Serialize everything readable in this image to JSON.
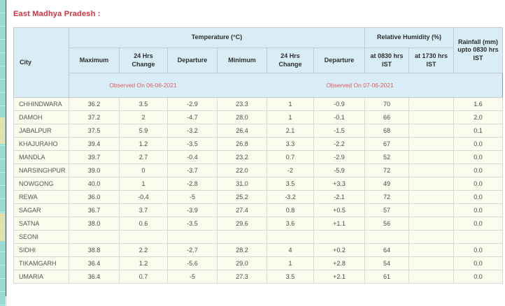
{
  "page": {
    "title": "East Madhya Pradesh :"
  },
  "colors": {
    "title_red": "#cf3340",
    "observed_red": "#e05c5c",
    "header_bg": "#d9edf6",
    "row_bg": "#fbfbee",
    "cell_border": "#d7d7d7",
    "header_border": "#c3c9cc",
    "outer_border": "#8f9aa0",
    "strip_teal": "#9adbd1",
    "strip_patch": "#e0e0b0",
    "text_dark": "#2e2e2e",
    "text_data": "#4a4a4a"
  },
  "table": {
    "header": {
      "city": "City",
      "temperature_group": "Temperature (°C)",
      "humidity_group": "Relative Humidity (%)",
      "rainfall": "Rainfall (mm) upto 0830 hrs IST",
      "sub": [
        "Maximum",
        "24 Hrs Change",
        "Departure",
        "Minimum",
        "24 Hrs Change",
        "Departure",
        "at 0830 hrs IST",
        "at 1730 hrs IST"
      ],
      "observed_max": "Observed On 06-06-2021",
      "observed_min": "Observed On 07-06-2021"
    },
    "rows": [
      {
        "city": "CHHINDWARA",
        "max": "36.2",
        "max_change": "3.5",
        "max_dep": "-2.9",
        "min": "23.3",
        "min_change": "1",
        "min_dep": "-0.9",
        "rh0830": "70",
        "rh1730": "",
        "rain": "1.6"
      },
      {
        "city": "DAMOH",
        "max": "37.2",
        "max_change": "2",
        "max_dep": "-4.7",
        "min": "28.0",
        "min_change": "1",
        "min_dep": "-0.1",
        "rh0830": "66",
        "rh1730": "",
        "rain": "2.0"
      },
      {
        "city": "JABALPUR",
        "max": "37.5",
        "max_change": "5.9",
        "max_dep": "-3.2",
        "min": "26.4",
        "min_change": "2.1",
        "min_dep": "-1.5",
        "rh0830": "68",
        "rh1730": "",
        "rain": "0.1"
      },
      {
        "city": "KHAJURAHO",
        "max": "39.4",
        "max_change": "1.2",
        "max_dep": "-3.5",
        "min": "26.8",
        "min_change": "3.3",
        "min_dep": "-2.2",
        "rh0830": "67",
        "rh1730": "",
        "rain": "0.0"
      },
      {
        "city": "MANDLA",
        "max": "39.7",
        "max_change": "2.7",
        "max_dep": "-0.4",
        "min": "23.2",
        "min_change": "0.7",
        "min_dep": "-2.9",
        "rh0830": "52",
        "rh1730": "",
        "rain": "0.0"
      },
      {
        "city": "NARSINGHPUR",
        "max": "39.0",
        "max_change": "0",
        "max_dep": "-3.7",
        "min": "22.0",
        "min_change": "-2",
        "min_dep": "-5.9",
        "rh0830": "72",
        "rh1730": "",
        "rain": "0.0"
      },
      {
        "city": "NOWGONG",
        "max": "40.0",
        "max_change": "1",
        "max_dep": "-2.8",
        "min": "31.0",
        "min_change": "3.5",
        "min_dep": "+3.3",
        "rh0830": "49",
        "rh1730": "",
        "rain": "0.0"
      },
      {
        "city": "REWA",
        "max": "36.0",
        "max_change": "-0.4",
        "max_dep": "-5",
        "min": "25.2",
        "min_change": "-3.2",
        "min_dep": "-2.1",
        "rh0830": "72",
        "rh1730": "",
        "rain": "0.0"
      },
      {
        "city": "SAGAR",
        "max": "36.7",
        "max_change": "3.7",
        "max_dep": "-3.9",
        "min": "27.4",
        "min_change": "0.8",
        "min_dep": "+0.5",
        "rh0830": "57",
        "rh1730": "",
        "rain": "0.0"
      },
      {
        "city": "SATNA",
        "max": "38.0",
        "max_change": "0.6",
        "max_dep": "-3.5",
        "min": "29.6",
        "min_change": "3.6",
        "min_dep": "+1.1",
        "rh0830": "56",
        "rh1730": "",
        "rain": "0.0"
      },
      {
        "city": "SEONI",
        "max": "",
        "max_change": "",
        "max_dep": "",
        "min": "",
        "min_change": "",
        "min_dep": "",
        "rh0830": "",
        "rh1730": "",
        "rain": ""
      },
      {
        "city": "SIDHI",
        "max": "38.8",
        "max_change": "2.2",
        "max_dep": "-2.7",
        "min": "28.2",
        "min_change": "4",
        "min_dep": "+0.2",
        "rh0830": "64",
        "rh1730": "",
        "rain": "0.0"
      },
      {
        "city": "TIKAMGARH",
        "max": "36.4",
        "max_change": "1.2",
        "max_dep": "-5.6",
        "min": "29.0",
        "min_change": "1",
        "min_dep": "+2.8",
        "rh0830": "54",
        "rh1730": "",
        "rain": "0.0"
      },
      {
        "city": "UMARIA",
        "max": "36.4",
        "max_change": "0.7",
        "max_dep": "-5",
        "min": "27.3",
        "min_change": "3.5",
        "min_dep": "+2.1",
        "rh0830": "61",
        "rh1730": "",
        "rain": "0.0"
      }
    ]
  }
}
